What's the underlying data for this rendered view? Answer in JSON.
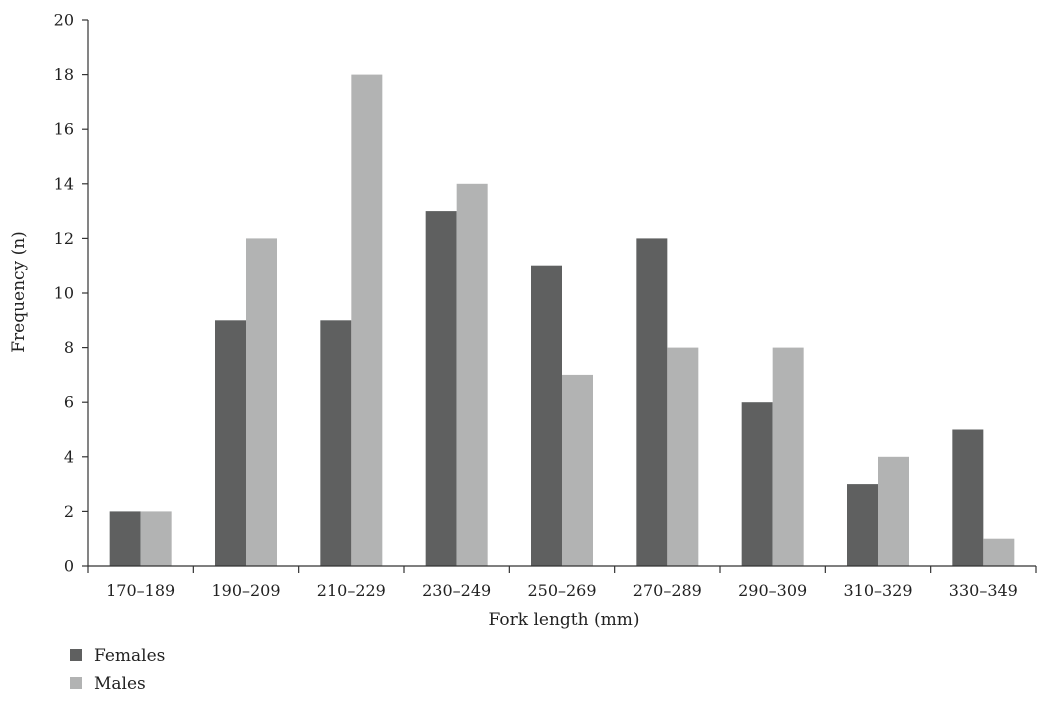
{
  "chart_data": {
    "type": "bar",
    "categories": [
      "170–189",
      "190–209",
      "210–229",
      "230–249",
      "250–269",
      "270–289",
      "290–309",
      "310–329",
      "330–349"
    ],
    "series": [
      {
        "name": "Females",
        "color": "#5f6060",
        "values": [
          2,
          9,
          9,
          13,
          11,
          12,
          6,
          3,
          5
        ]
      },
      {
        "name": "Males",
        "color": "#b2b3b3",
        "values": [
          2,
          12,
          18,
          14,
          7,
          8,
          8,
          4,
          1
        ]
      }
    ],
    "xlabel": "Fork length (mm)",
    "ylabel": "Frequency (n)",
    "ylim": [
      0,
      20
    ],
    "yticks": [
      0,
      2,
      4,
      6,
      8,
      10,
      12,
      14,
      16,
      18,
      20
    ],
    "grid": false,
    "legend_position": "bottom-left"
  }
}
